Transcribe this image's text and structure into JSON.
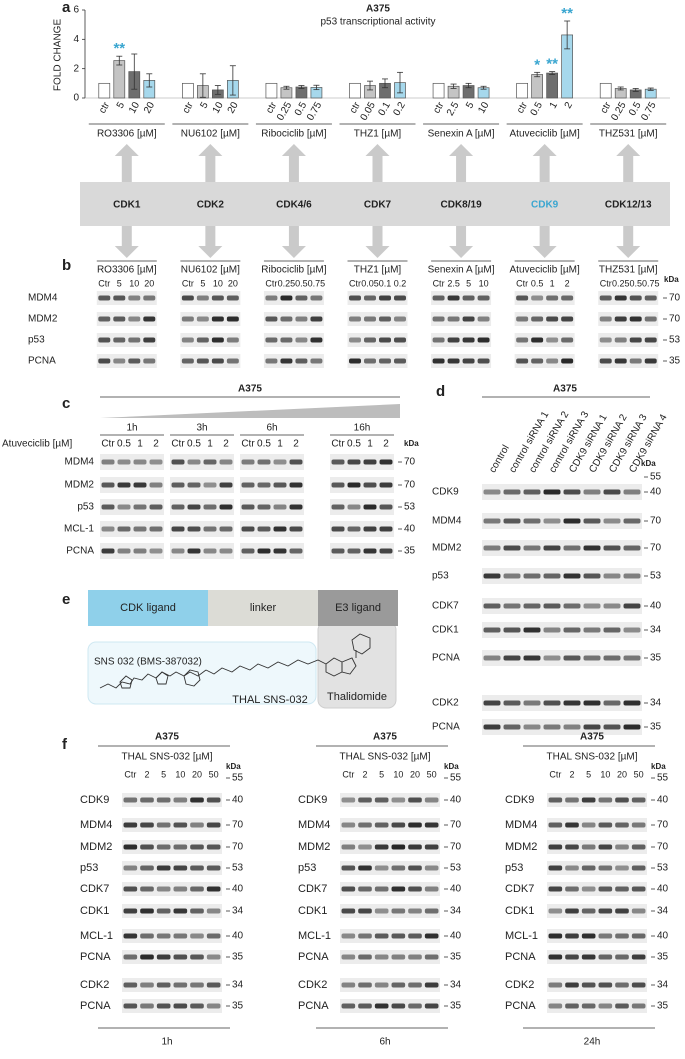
{
  "panel_labels": [
    "a",
    "b",
    "c",
    "d",
    "e",
    "f"
  ],
  "chart_data": {
    "type": "bar",
    "title": "A375",
    "subtitle": "p53 transcriptional activity",
    "y_label": "FOLD CHANGE",
    "ylim": [
      0,
      6
    ],
    "yticks": [
      0,
      2,
      4,
      6
    ],
    "bar_colors": [
      "#ffffff",
      "#c4c4c4",
      "#6e6e6e",
      "#a6d8ec"
    ],
    "annotation_color": "#3aa6d0",
    "groups": [
      {
        "name": "RO3306 [µM]",
        "categories": [
          "ctr",
          "5",
          "10",
          "20"
        ],
        "values": [
          1,
          2.55,
          1.8,
          1.2
        ],
        "errors": [
          null,
          0.3,
          1.2,
          0.45
        ],
        "significance": [
          null,
          "**",
          null,
          null
        ]
      },
      {
        "name": "NU6102 [µM]",
        "categories": [
          "ctr",
          "5",
          "10",
          "20"
        ],
        "values": [
          1,
          0.85,
          0.55,
          1.2
        ],
        "errors": [
          null,
          0.8,
          0.3,
          1.0
        ],
        "significance": [
          null,
          null,
          null,
          null
        ]
      },
      {
        "name": "Ribociclib [µM]",
        "categories": [
          "ctr",
          "0.25",
          "0.5",
          "0.75"
        ],
        "values": [
          1,
          0.7,
          0.75,
          0.72
        ],
        "errors": [
          null,
          0.1,
          0.1,
          0.15
        ],
        "significance": [
          null,
          null,
          null,
          null
        ]
      },
      {
        "name": "THZ1 [µM]",
        "categories": [
          "ctr",
          "0.05",
          "0.1",
          "0.2"
        ],
        "values": [
          1,
          0.85,
          1.0,
          1.05
        ],
        "errors": [
          null,
          0.3,
          0.3,
          0.7
        ],
        "significance": [
          null,
          null,
          null,
          null
        ]
      },
      {
        "name": "Senexin A [µM]",
        "categories": [
          "ctr",
          "2.5",
          "5",
          "10"
        ],
        "values": [
          1,
          0.8,
          0.85,
          0.7
        ],
        "errors": [
          null,
          0.15,
          0.15,
          0.1
        ],
        "significance": [
          null,
          null,
          null,
          null
        ]
      },
      {
        "name": "Atuveciclib [µM]",
        "categories": [
          "ctr",
          "0.5",
          "1",
          "2"
        ],
        "values": [
          1,
          1.6,
          1.7,
          4.3
        ],
        "errors": [
          null,
          0.15,
          0.1,
          0.95
        ],
        "significance": [
          null,
          "*",
          "**",
          "**"
        ]
      },
      {
        "name": "THZ531 [µM]",
        "categories": [
          "ctr",
          "0.25",
          "0.5",
          "0.75"
        ],
        "values": [
          1,
          0.65,
          0.55,
          0.6
        ],
        "errors": [
          null,
          0.1,
          0.1,
          0.08
        ],
        "significance": [
          null,
          null,
          null,
          null
        ]
      }
    ]
  },
  "targets": [
    {
      "label": "CDK1",
      "color": "#222222"
    },
    {
      "label": "CDK2",
      "color": "#222222"
    },
    {
      "label": "CDK4/6",
      "color": "#222222"
    },
    {
      "label": "CDK7",
      "color": "#222222"
    },
    {
      "label": "CDK8/19",
      "color": "#222222"
    },
    {
      "label": "CDK9",
      "color": "#3aa6d0"
    },
    {
      "label": "CDK12/13",
      "color": "#222222"
    }
  ],
  "panel_b": {
    "rows": [
      "MDM4",
      "MDM2",
      "p53",
      "PCNA"
    ],
    "kda_title": "kDa",
    "kda": [
      "70",
      "70",
      "53",
      "35"
    ],
    "drugs": [
      {
        "name": "RO3306 [µM]",
        "lanes": [
          "Ctr",
          "5",
          "10",
          "20"
        ]
      },
      {
        "name": "NU6102 [µM]",
        "lanes": [
          "Ctr",
          "5",
          "10",
          "20"
        ]
      },
      {
        "name": "Ribociclib [µM]",
        "lanes": [
          "Ctr",
          "0.25",
          "0.5",
          "0.75"
        ]
      },
      {
        "name": "THZ1 [µM]",
        "lanes": [
          "Ctr",
          "0.05",
          "0.1",
          "0.2"
        ]
      },
      {
        "name": "Senexin A [µM]",
        "lanes": [
          "Ctr",
          "2.5",
          "5",
          "10"
        ]
      },
      {
        "name": "Atuveciclib [µM]",
        "lanes": [
          "Ctr",
          "0.5",
          "1",
          "2"
        ]
      },
      {
        "name": "THZ531 [µM]",
        "lanes": [
          "Ctr",
          "0.25",
          "0.5",
          "0.75"
        ]
      }
    ]
  },
  "panel_c": {
    "cell_line": "A375",
    "dose_label": "Atuveciclib [µM]",
    "kda_title": "kDa",
    "times": [
      {
        "time": "1h",
        "lanes": [
          "Ctr",
          "0.5",
          "1",
          "2"
        ]
      },
      {
        "time": "3h",
        "lanes": [
          "Ctr",
          "0.5",
          "1",
          "2"
        ]
      },
      {
        "time": "6h",
        "lanes": [
          "Ctr",
          "0.5",
          "1",
          "2"
        ]
      },
      {
        "time": "16h",
        "lanes": [
          "Ctr",
          "0.5",
          "1",
          "2"
        ]
      }
    ],
    "rows": [
      {
        "name": "MDM4",
        "kda": "70"
      },
      {
        "name": "MDM2",
        "kda": "70"
      },
      {
        "name": "p53",
        "kda": "53"
      },
      {
        "name": "MCL-1",
        "kda": "40"
      },
      {
        "name": "PCNA",
        "kda": "35"
      }
    ]
  },
  "panel_d": {
    "cell_line": "A375",
    "kda_title": "kDa",
    "kda_top": "55",
    "lanes": [
      "control",
      "control siRNA 1",
      "control siRNA 2",
      "control siRNA 3",
      "CDK9 siRNA 1",
      "CDK9 siRNA 2",
      "CDK9 siRNA 3",
      "CDK9 siRNA 4"
    ],
    "rows": [
      {
        "name": "CDK9",
        "kda": "40"
      },
      {
        "name": "MDM4",
        "kda": "70"
      },
      {
        "name": "MDM2",
        "kda": "70"
      },
      {
        "name": "p53",
        "kda": "53"
      },
      {
        "name": "CDK7",
        "kda": "40"
      },
      {
        "name": "CDK1",
        "kda": "34"
      },
      {
        "name": "PCNA",
        "kda": "35"
      },
      {
        "name": "CDK2",
        "kda": "34"
      },
      {
        "name": "PCNA",
        "kda": "35"
      }
    ]
  },
  "panel_e": {
    "boxes": [
      "CDK ligand",
      "linker",
      "E3 ligand"
    ],
    "box_colors": [
      "#8fd0ea",
      "#dcdcd6",
      "#9a9a9a"
    ],
    "compound": "SNS 032 (BMS-387032)",
    "name": "THAL SNS-032",
    "e3": "Thalidomide"
  },
  "panel_f": {
    "blocks": [
      {
        "cell_line": "A375",
        "dose_label": "THAL SNS-032 [µM]",
        "lanes": [
          "Ctr",
          "2",
          "5",
          "10",
          "20",
          "50"
        ],
        "kda_title": "kDa",
        "kda_top": "55",
        "time": "1h",
        "rows": [
          {
            "name": "CDK9",
            "kda": "40"
          },
          {
            "name": "MDM4",
            "kda": "70"
          },
          {
            "name": "MDM2",
            "kda": "70"
          },
          {
            "name": "p53",
            "kda": "53"
          },
          {
            "name": "CDK7",
            "kda": "40"
          },
          {
            "name": "CDK1",
            "kda": "34"
          },
          {
            "name": "MCL-1",
            "kda": "40"
          },
          {
            "name": "PCNA",
            "kda": "35"
          },
          {
            "name": "CDK2",
            "kda": "34"
          },
          {
            "name": "PCNA",
            "kda": "35"
          }
        ]
      },
      {
        "cell_line": "A375",
        "dose_label": "THAL SNS-032 [µM]",
        "lanes": [
          "Ctr",
          "2",
          "5",
          "10",
          "20",
          "50"
        ],
        "kda_title": "kDa",
        "kda_top": "55",
        "time": "6h",
        "rows": [
          {
            "name": "CDK9",
            "kda": "40"
          },
          {
            "name": "MDM4",
            "kda": "70"
          },
          {
            "name": "MDM2",
            "kda": "70"
          },
          {
            "name": "p53",
            "kda": "53"
          },
          {
            "name": "CDK7",
            "kda": "40"
          },
          {
            "name": "CDK1",
            "kda": "34"
          },
          {
            "name": "MCL-1",
            "kda": "40"
          },
          {
            "name": "PCNA",
            "kda": "35"
          },
          {
            "name": "CDK2",
            "kda": "34"
          },
          {
            "name": "PCNA",
            "kda": "35"
          }
        ]
      },
      {
        "cell_line": "A375",
        "dose_label": "THAL SNS-032 [µM]",
        "lanes": [
          "Ctr",
          "2",
          "5",
          "10",
          "20",
          "50"
        ],
        "kda_title": "kDa",
        "kda_top": "55",
        "time": "24h",
        "rows": [
          {
            "name": "CDK9",
            "kda": "40"
          },
          {
            "name": "MDM4",
            "kda": "70"
          },
          {
            "name": "MDM2",
            "kda": "70"
          },
          {
            "name": "p53",
            "kda": "53"
          },
          {
            "name": "CDK7",
            "kda": "40"
          },
          {
            "name": "CDK1",
            "kda": "34"
          },
          {
            "name": "MCL-1",
            "kda": "40"
          },
          {
            "name": "PCNA",
            "kda": "35"
          },
          {
            "name": "CDK2",
            "kda": "34"
          },
          {
            "name": "PCNA",
            "kda": "35"
          }
        ]
      }
    ]
  }
}
